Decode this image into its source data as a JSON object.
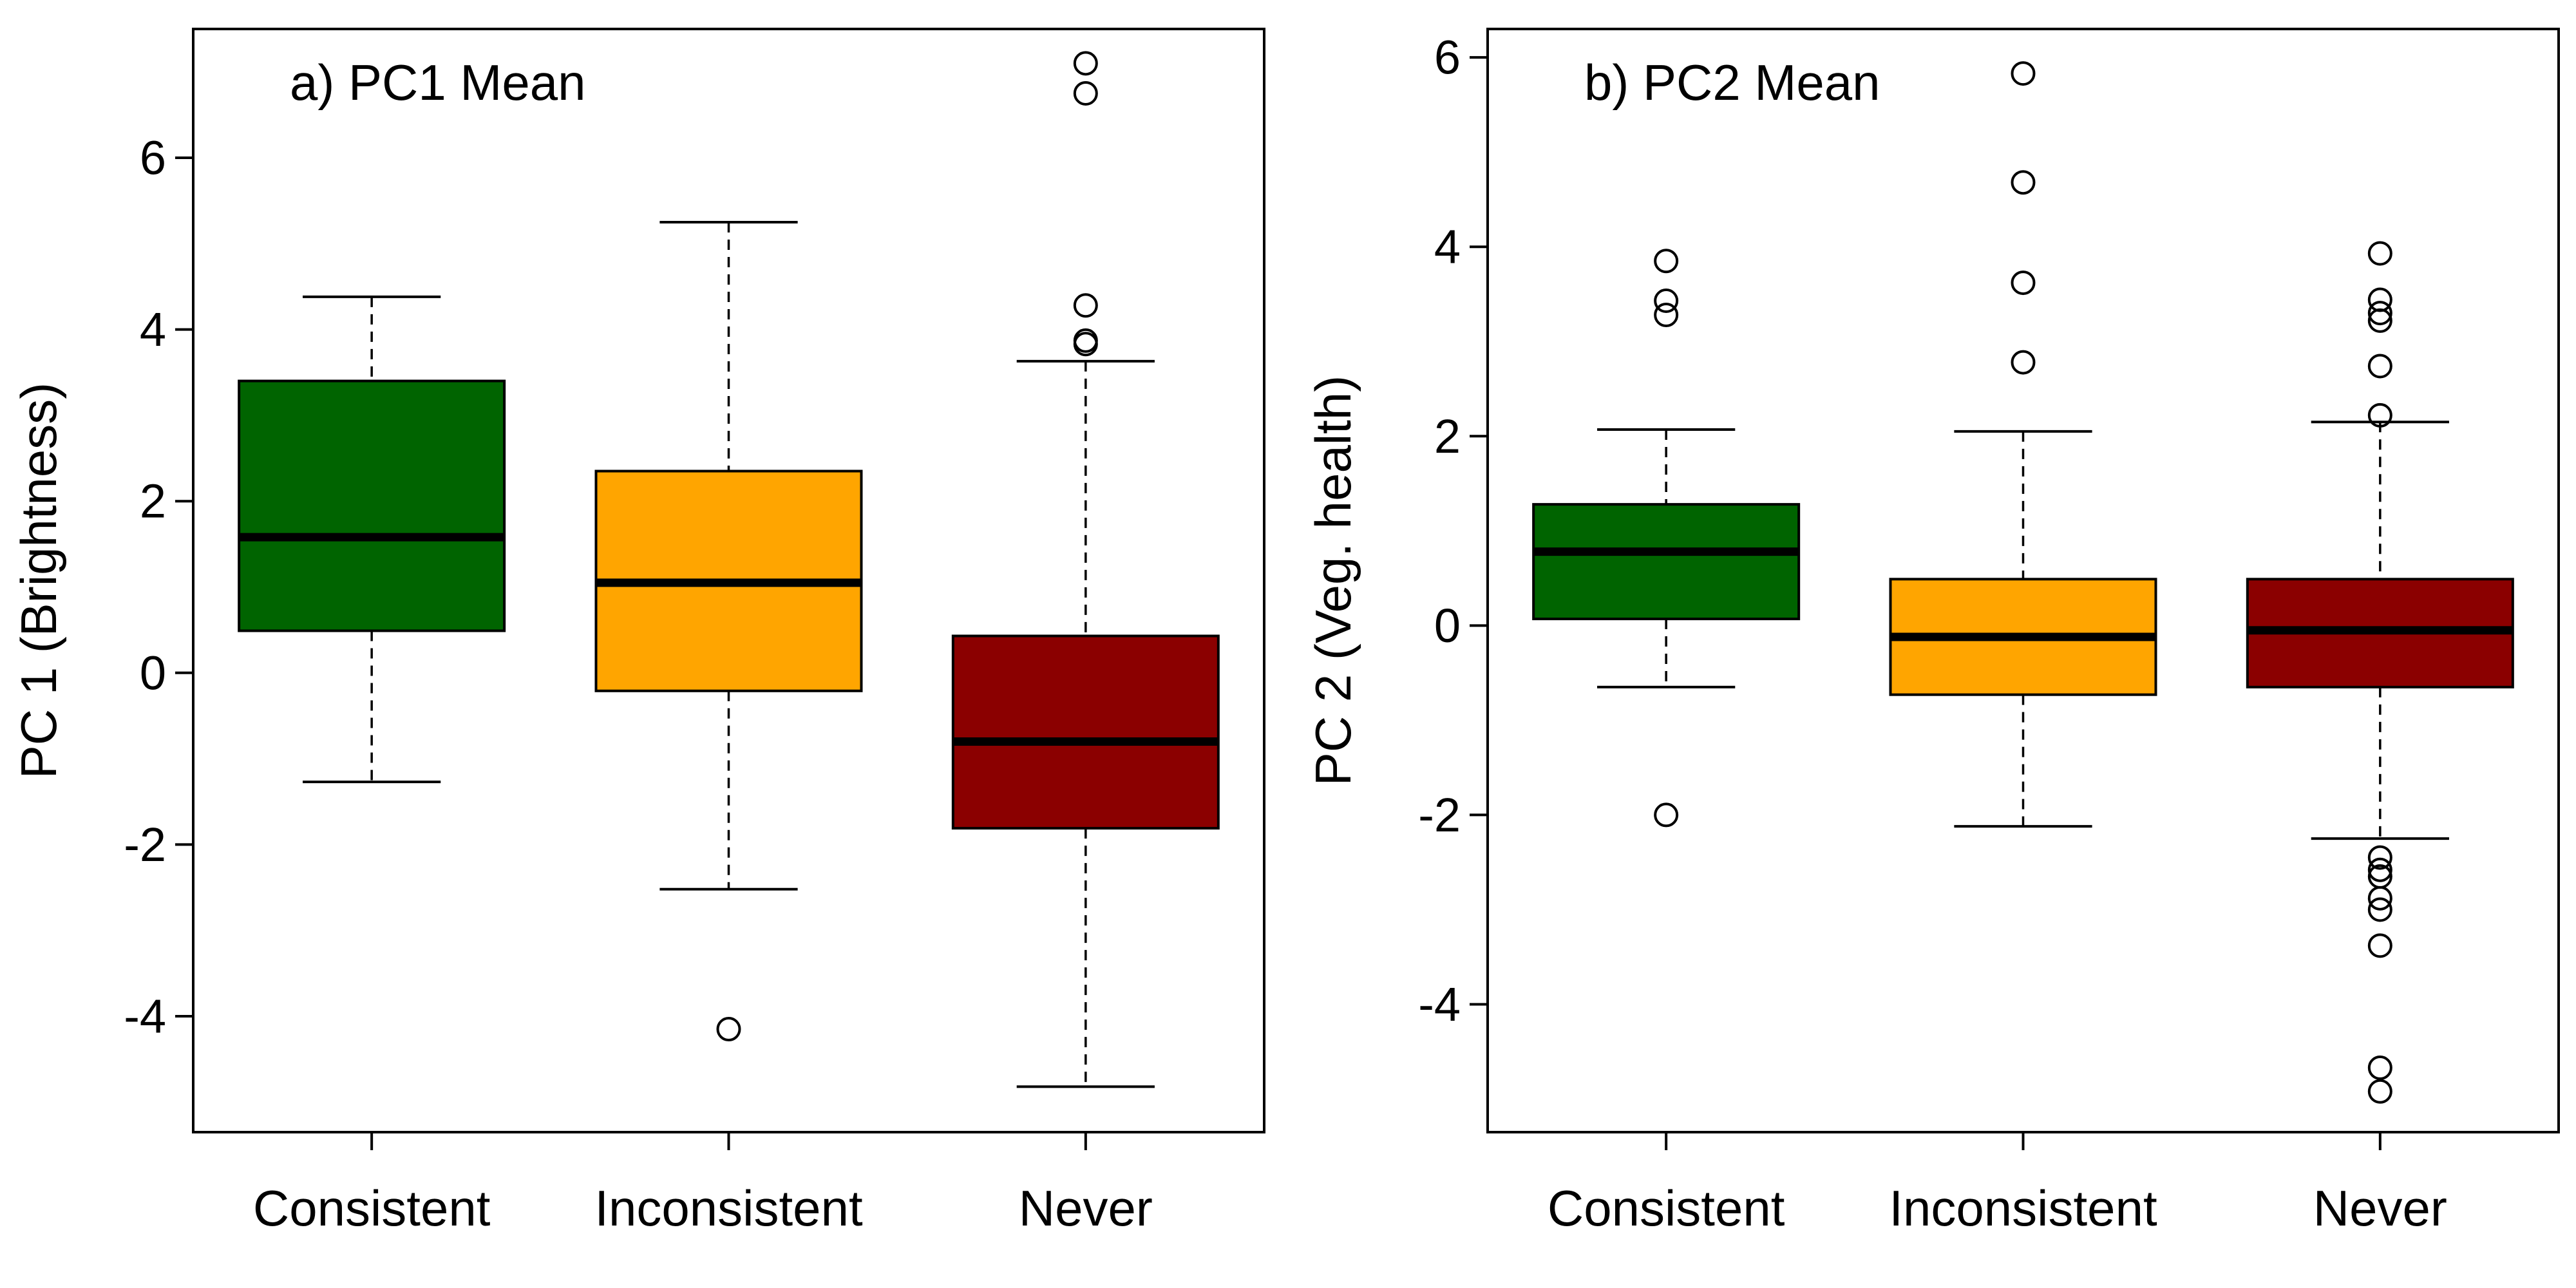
{
  "chart_data": [
    {
      "type": "boxplot",
      "title": "a) PC1 Mean",
      "ylabel": "PC 1 (Brightness)",
      "xlabel": "",
      "categories": [
        "Consistent",
        "Inconsistent",
        "Never"
      ],
      "colors": [
        "#006400",
        "#FFA500",
        "#8B0000"
      ],
      "ylim": [
        -5.35,
        7.5
      ],
      "yticks": [
        -4,
        -2,
        0,
        2,
        4,
        6
      ],
      "ytick_labels": [
        "-4",
        "-2",
        "0",
        "2",
        "4",
        "6"
      ],
      "boxes": [
        {
          "category": "Consistent",
          "whisker_low": -1.27,
          "q1": 0.49,
          "median": 1.58,
          "q3": 3.4,
          "whisker_high": 4.38,
          "outliers": []
        },
        {
          "category": "Inconsistent",
          "whisker_low": -2.52,
          "q1": -0.21,
          "median": 1.05,
          "q3": 2.35,
          "whisker_high": 5.25,
          "outliers": [
            -4.15
          ]
        },
        {
          "category": "Never",
          "whisker_low": -4.82,
          "q1": -1.81,
          "median": -0.8,
          "q3": 0.43,
          "whisker_high": 3.63,
          "outliers": [
            3.83,
            3.87,
            4.28,
            6.75,
            7.1
          ]
        }
      ],
      "grid": false,
      "legend": "none"
    },
    {
      "type": "boxplot",
      "title": "b) PC2 Mean",
      "ylabel": "PC 2 (Veg. health)",
      "xlabel": "",
      "categories": [
        "Consistent",
        "Inconsistent",
        "Never"
      ],
      "colors": [
        "#006400",
        "#FFA500",
        "#8B0000"
      ],
      "ylim": [
        -5.35,
        6.3
      ],
      "yticks": [
        -4,
        -2,
        0,
        2,
        4,
        6
      ],
      "ytick_labels": [
        "-4",
        "-2",
        "0",
        "2",
        "4",
        "6"
      ],
      "boxes": [
        {
          "category": "Consistent",
          "whisker_low": -0.65,
          "q1": 0.07,
          "median": 0.78,
          "q3": 1.28,
          "whisker_high": 2.07,
          "outliers": [
            -2.0,
            3.28,
            3.43,
            3.85
          ]
        },
        {
          "category": "Inconsistent",
          "whisker_low": -2.12,
          "q1": -0.73,
          "median": -0.12,
          "q3": 0.49,
          "whisker_high": 2.05,
          "outliers": [
            2.78,
            3.62,
            4.68,
            5.83
          ]
        },
        {
          "category": "Never",
          "whisker_low": -2.25,
          "q1": -0.65,
          "median": -0.05,
          "q3": 0.49,
          "whisker_high": 2.15,
          "outliers": [
            -4.92,
            -4.67,
            -3.38,
            -3.0,
            -2.88,
            -2.65,
            -2.58,
            -2.45,
            2.22,
            2.74,
            3.22,
            3.3,
            3.44,
            3.93
          ]
        }
      ],
      "grid": false,
      "legend": "none"
    }
  ]
}
